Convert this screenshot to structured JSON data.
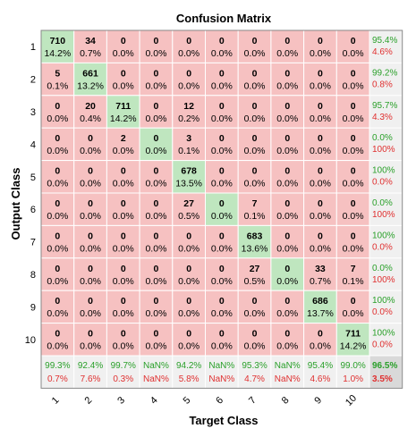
{
  "chart_data": {
    "type": "heatmap",
    "title": "Confusion Matrix",
    "xlabel": "Target Class",
    "ylabel": "Output Class",
    "x_tick_labels": [
      "1",
      "2",
      "3",
      "4",
      "5",
      "6",
      "7",
      "8",
      "9",
      "10"
    ],
    "y_tick_labels": [
      "1",
      "2",
      "3",
      "4",
      "5",
      "6",
      "7",
      "8",
      "9",
      "10"
    ],
    "matrix": [
      [
        710,
        34,
        0,
        0,
        0,
        0,
        0,
        0,
        0,
        0
      ],
      [
        5,
        661,
        0,
        0,
        0,
        0,
        0,
        0,
        0,
        0
      ],
      [
        0,
        20,
        711,
        0,
        12,
        0,
        0,
        0,
        0,
        0
      ],
      [
        0,
        0,
        2,
        0,
        3,
        0,
        0,
        0,
        0,
        0
      ],
      [
        0,
        0,
        0,
        0,
        678,
        0,
        0,
        0,
        0,
        0
      ],
      [
        0,
        0,
        0,
        0,
        27,
        0,
        7,
        0,
        0,
        0
      ],
      [
        0,
        0,
        0,
        0,
        0,
        0,
        683,
        0,
        0,
        0
      ],
      [
        0,
        0,
        0,
        0,
        0,
        0,
        27,
        0,
        33,
        7
      ],
      [
        0,
        0,
        0,
        0,
        0,
        0,
        0,
        0,
        686,
        0
      ],
      [
        0,
        0,
        0,
        0,
        0,
        0,
        0,
        0,
        0,
        711
      ]
    ],
    "cell_percents": [
      [
        "14.2%",
        "0.7%",
        "0.0%",
        "0.0%",
        "0.0%",
        "0.0%",
        "0.0%",
        "0.0%",
        "0.0%",
        "0.0%"
      ],
      [
        "0.1%",
        "13.2%",
        "0.0%",
        "0.0%",
        "0.0%",
        "0.0%",
        "0.0%",
        "0.0%",
        "0.0%",
        "0.0%"
      ],
      [
        "0.0%",
        "0.4%",
        "14.2%",
        "0.0%",
        "0.2%",
        "0.0%",
        "0.0%",
        "0.0%",
        "0.0%",
        "0.0%"
      ],
      [
        "0.0%",
        "0.0%",
        "0.0%",
        "0.0%",
        "0.1%",
        "0.0%",
        "0.0%",
        "0.0%",
        "0.0%",
        "0.0%"
      ],
      [
        "0.0%",
        "0.0%",
        "0.0%",
        "0.0%",
        "13.5%",
        "0.0%",
        "0.0%",
        "0.0%",
        "0.0%",
        "0.0%"
      ],
      [
        "0.0%",
        "0.0%",
        "0.0%",
        "0.0%",
        "0.5%",
        "0.0%",
        "0.1%",
        "0.0%",
        "0.0%",
        "0.0%"
      ],
      [
        "0.0%",
        "0.0%",
        "0.0%",
        "0.0%",
        "0.0%",
        "0.0%",
        "13.6%",
        "0.0%",
        "0.0%",
        "0.0%"
      ],
      [
        "0.0%",
        "0.0%",
        "0.0%",
        "0.0%",
        "0.0%",
        "0.0%",
        "0.5%",
        "0.0%",
        "0.7%",
        "0.1%"
      ],
      [
        "0.0%",
        "0.0%",
        "0.0%",
        "0.0%",
        "0.0%",
        "0.0%",
        "0.0%",
        "0.0%",
        "13.7%",
        "0.0%"
      ],
      [
        "0.0%",
        "0.0%",
        "0.0%",
        "0.0%",
        "0.0%",
        "0.0%",
        "0.0%",
        "0.0%",
        "0.0%",
        "14.2%"
      ]
    ],
    "row_summary": [
      [
        "95.4%",
        "4.6%"
      ],
      [
        "99.2%",
        "0.8%"
      ],
      [
        "95.7%",
        "4.3%"
      ],
      [
        "0.0%",
        "100%"
      ],
      [
        "100%",
        "0.0%"
      ],
      [
        "0.0%",
        "100%"
      ],
      [
        "100%",
        "0.0%"
      ],
      [
        "0.0%",
        "100%"
      ],
      [
        "100%",
        "0.0%"
      ],
      [
        "100%",
        "0.0%"
      ]
    ],
    "col_summary": [
      [
        "99.3%",
        "0.7%"
      ],
      [
        "92.4%",
        "7.6%"
      ],
      [
        "99.7%",
        "0.3%"
      ],
      [
        "NaN%",
        "NaN%"
      ],
      [
        "94.2%",
        "5.8%"
      ],
      [
        "NaN%",
        "NaN%"
      ],
      [
        "95.3%",
        "4.7%"
      ],
      [
        "NaN%",
        "NaN%"
      ],
      [
        "95.4%",
        "4.6%"
      ],
      [
        "99.0%",
        "1.0%"
      ]
    ],
    "overall": [
      "96.5%",
      "3.5%"
    ],
    "colors": {
      "diagonal": "#bfe6bf",
      "offdiagonal": "#f6c1c1",
      "summary_bg": "#f0f0f0",
      "overall_bg": "#d9d9d9",
      "correct_text": "#2aa02a",
      "error_text": "#e03030",
      "text": "#000000",
      "grid": "#ffffff",
      "border": "#888888"
    }
  }
}
